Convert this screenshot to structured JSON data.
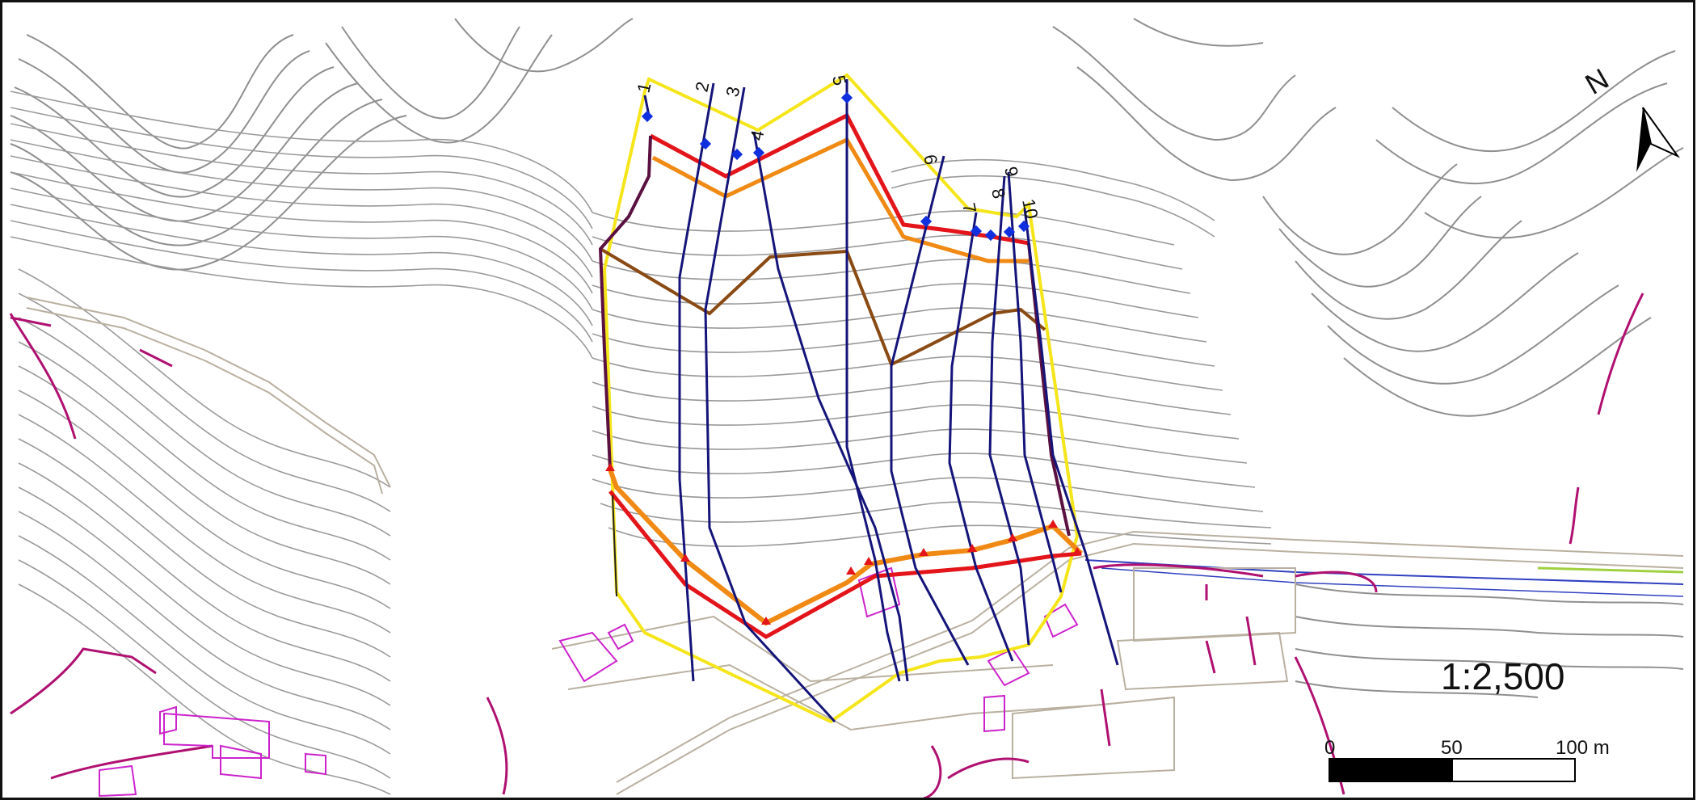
{
  "map": {
    "scale_ratio": "1:2,500",
    "north_label": "N",
    "scalebar": {
      "ticks": [
        "0",
        "50",
        "100 m"
      ]
    },
    "profile_labels": [
      "1",
      "2",
      "3",
      "4",
      "5",
      "6",
      "7",
      "8",
      "9",
      "10"
    ],
    "colors": {
      "contour": "#8f8f8f",
      "outer_boundary": "#f5e51b",
      "scarp_red": "#e3141a",
      "scarp_orange": "#f08a14",
      "inner_brown": "#8a4a14",
      "profile_lines": "#14147a",
      "cliff_magenta": "#b01070",
      "building_outline": "#cc22cc",
      "marker_blue": "#1030e0",
      "marker_red": "#e3141a"
    }
  }
}
